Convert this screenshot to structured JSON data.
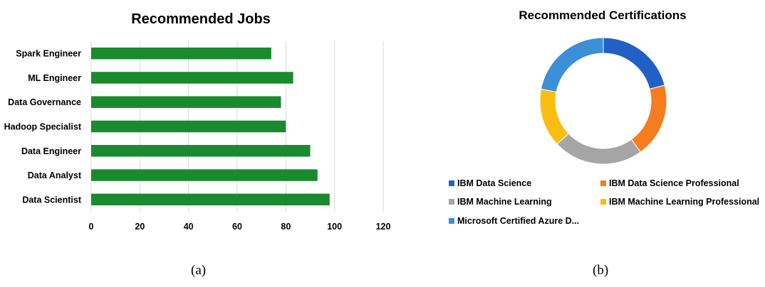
{
  "chart_data": [
    {
      "type": "bar",
      "orientation": "horizontal",
      "title": "Recommended Jobs",
      "categories": [
        "Data Scientist",
        "Data Analyst",
        "Data Engineer",
        "Hadoop Specialist",
        "Data Governance",
        "ML Engineer",
        "Spark Engineer"
      ],
      "values": [
        98,
        93,
        90,
        80,
        78,
        83,
        74
      ],
      "xlim": [
        0,
        120
      ],
      "xticks": [
        "0",
        "20",
        "40",
        "60",
        "80",
        "100",
        "120"
      ],
      "xlabel": "",
      "ylabel": "",
      "grid": true,
      "bar_color": "#1a8a2e",
      "grid_color": "#d9d9d9"
    },
    {
      "type": "pie",
      "variant": "donut",
      "title": "Recommended Certifications",
      "labels": [
        "IBM Data Science",
        "IBM Data Science Professional",
        "IBM Machine Learning",
        "IBM Machine Learning Professional",
        "Microsoft Certified Azure D..."
      ],
      "values": [
        21,
        19,
        23,
        15,
        22
      ],
      "colors": [
        "#2160c4",
        "#f57c1f",
        "#a5a5a5",
        "#fbbd11",
        "#3a8fd6"
      ],
      "legend_position": "bottom"
    }
  ],
  "captions": {
    "a": "(a)",
    "b": "(b)"
  }
}
